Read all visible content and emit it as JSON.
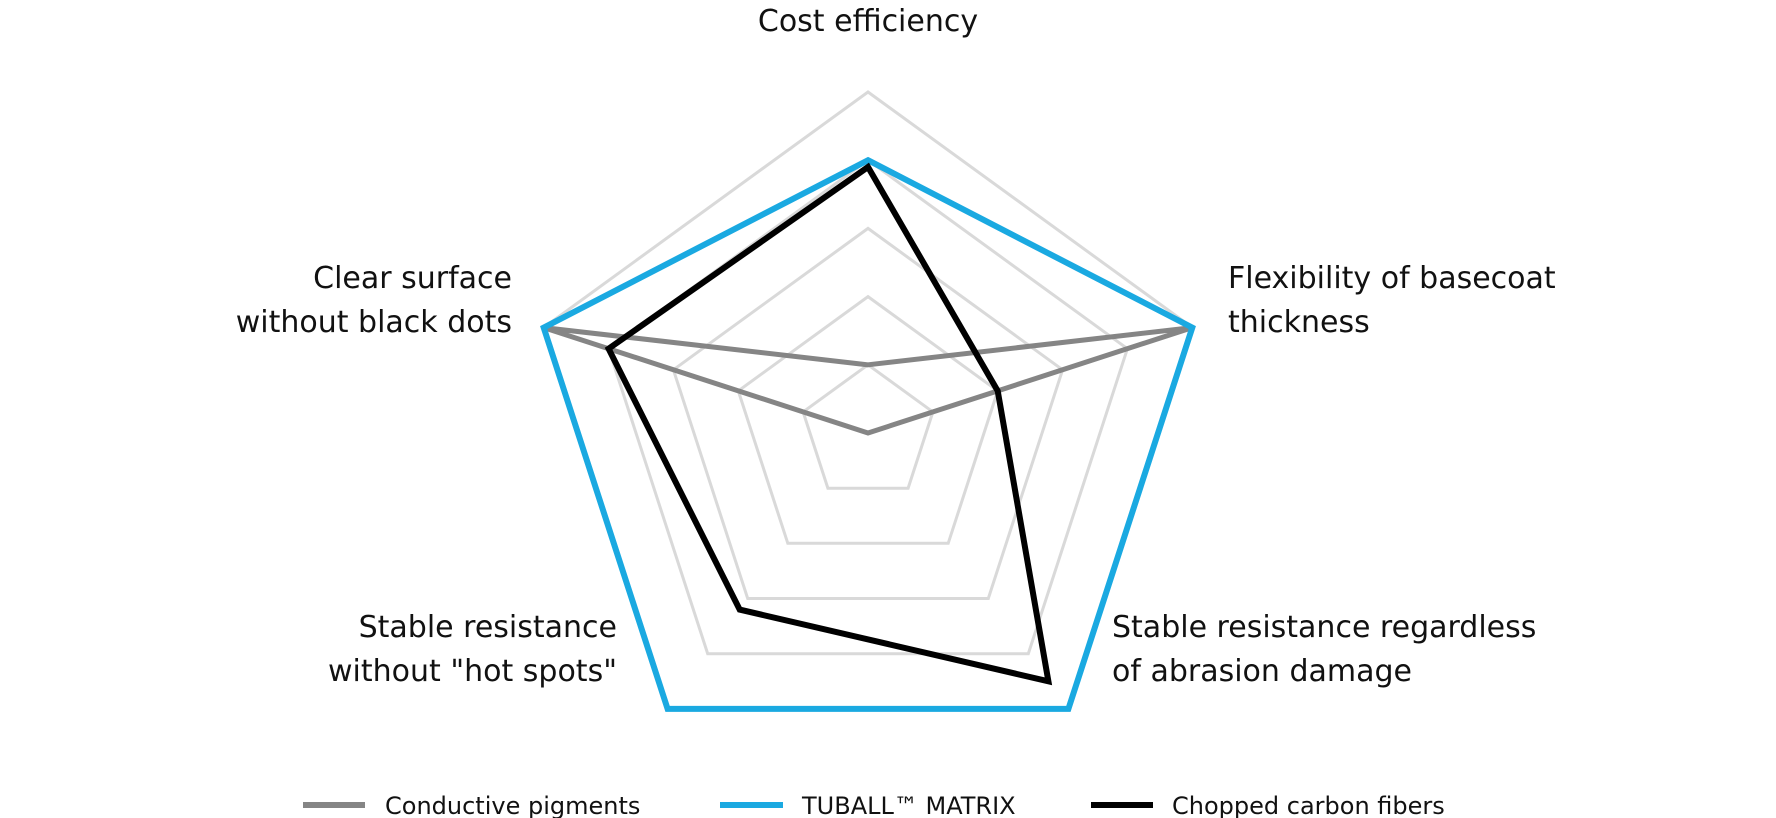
{
  "chart_data": {
    "type": "radar",
    "axes": [
      {
        "label_lines": [
          "Cost efficiency"
        ]
      },
      {
        "label_lines": [
          "Flexibility of basecoat",
          "thickness"
        ]
      },
      {
        "label_lines": [
          "Stable resistance regardless",
          "of abrasion damage"
        ]
      },
      {
        "label_lines": [
          "Stable resistance",
          "without \"hot spots\""
        ]
      },
      {
        "label_lines": [
          "Clear surface",
          "without black dots"
        ]
      }
    ],
    "rlim": [
      0,
      5
    ],
    "grid_levels": [
      1,
      2,
      3,
      4,
      5
    ],
    "grid": true,
    "legend_position": "bottom",
    "series": [
      {
        "name": "Conductive pigments",
        "color": "#858585",
        "values": [
          1,
          5,
          0,
          0,
          5
        ]
      },
      {
        "name": "TUBALL™  MATRIX",
        "color": "#1aa9e1",
        "values": [
          4,
          5,
          5,
          5,
          5
        ]
      },
      {
        "name": "Chopped carbon fibers",
        "color": "#000000",
        "values": [
          3.9,
          2,
          4.5,
          3.2,
          4
        ]
      }
    ]
  }
}
